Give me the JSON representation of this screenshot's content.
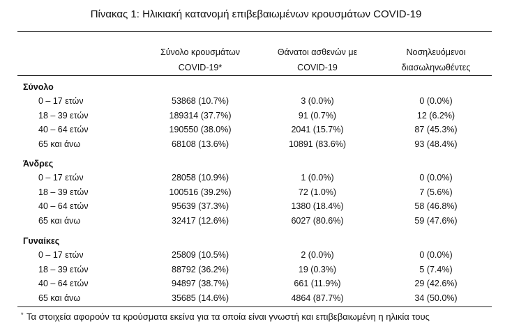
{
  "title": "Πίνακας 1: Ηλικιακή κατανομή επιβεβαιωμένων κρουσμάτων COVID-19",
  "table": {
    "header": [
      [
        "Σύνολο κρουσμάτων",
        "COVID-19*"
      ],
      [
        "Θάνατοι ασθενών με",
        "COVID-19"
      ],
      [
        "Νοσηλευόμενοι",
        "διασωληνωθέντες"
      ]
    ],
    "groups": [
      {
        "name": "Σύνολο",
        "rows": [
          [
            "0 – 17 ετών",
            "53868 (10.7%)",
            "3 (0.0%)",
            "0 (0.0%)"
          ],
          [
            "18 – 39 ετών",
            "189314 (37.7%)",
            "91 (0.7%)",
            "12 (6.2%)"
          ],
          [
            "40 – 64 ετών",
            "190550 (38.0%)",
            "2041 (15.7%)",
            "87 (45.3%)"
          ],
          [
            "65 και άνω",
            "68108 (13.6%)",
            "10891 (83.6%)",
            "93 (48.4%)"
          ]
        ]
      },
      {
        "name": "Άνδρες",
        "rows": [
          [
            "0 – 17 ετών",
            "28058 (10.9%)",
            "1 (0.0%)",
            "0 (0.0%)"
          ],
          [
            "18 – 39 ετών",
            "100516 (39.2%)",
            "72 (1.0%)",
            "7 (5.6%)"
          ],
          [
            "40 – 64 ετών",
            "95639 (37.3%)",
            "1380 (18.4%)",
            "58 (46.8%)"
          ],
          [
            "65 και άνω",
            "32417 (12.6%)",
            "6027 (80.6%)",
            "59 (47.6%)"
          ]
        ]
      },
      {
        "name": "Γυναίκες",
        "rows": [
          [
            "0 – 17 ετών",
            "25809 (10.5%)",
            "2 (0.0%)",
            "0 (0.0%)"
          ],
          [
            "18 – 39 ετών",
            "88792 (36.2%)",
            "19 (0.3%)",
            "5 (7.4%)"
          ],
          [
            "40 – 64 ετών",
            "94897 (38.7%)",
            "661 (11.9%)",
            "29 (42.6%)"
          ],
          [
            "65 και άνω",
            "35685 (14.6%)",
            "4864 (87.7%)",
            "34 (50.0%)"
          ]
        ]
      }
    ]
  },
  "footnote": {
    "marker": "*",
    "text": "Τα στοιχεία αφορούν τα κρούσματα εκείνα για τα οποία είναι γνωστή και επιβεβαιωμένη η ηλικία τους"
  }
}
